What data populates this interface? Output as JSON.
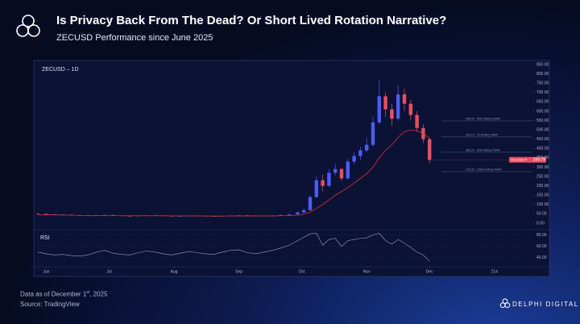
{
  "header": {
    "title": "Is Privacy Back From The Dead? Or Short Lived Rotation Narrative?",
    "subtitle": "ZECUSD Performance since June 2025"
  },
  "chart_data": {
    "type": "candlestick",
    "label": "ZECUSD – 1D",
    "symbol": "ZECUSD.P",
    "up_color": "#4a5cff",
    "down_color": "#e8505f",
    "ma_color": "#d8323c",
    "grid": false,
    "x": [
      -4,
      0,
      4,
      8,
      12,
      16,
      20,
      24,
      28,
      32,
      36,
      40,
      44,
      48,
      52,
      56,
      60,
      64,
      68,
      72,
      76,
      80,
      84,
      88,
      92,
      96,
      100,
      104,
      108,
      112,
      116,
      120,
      123,
      126,
      129,
      132,
      135,
      138,
      141,
      144,
      147,
      150,
      153,
      156,
      159,
      162,
      165,
      168,
      171,
      174,
      177,
      180,
      183
    ],
    "open": [
      52,
      50,
      48,
      46,
      45,
      43,
      41,
      40,
      42,
      44,
      41,
      39,
      38,
      40,
      42,
      41,
      39,
      37,
      38,
      40,
      39,
      38,
      37,
      39,
      41,
      42,
      40,
      38,
      39,
      41,
      44,
      48,
      58,
      70,
      140,
      230,
      200,
      270,
      290,
      240,
      330,
      360,
      390,
      420,
      540,
      680,
      610,
      560,
      690,
      640,
      580,
      510,
      450
    ],
    "high": [
      54,
      52,
      50,
      48,
      47,
      45,
      43,
      44,
      46,
      46,
      43,
      41,
      42,
      44,
      44,
      43,
      41,
      40,
      42,
      42,
      41,
      40,
      41,
      43,
      44,
      44,
      42,
      41,
      43,
      46,
      50,
      62,
      78,
      150,
      250,
      260,
      290,
      320,
      300,
      345,
      380,
      410,
      460,
      570,
      770,
      700,
      640,
      740,
      720,
      660,
      600,
      530,
      460
    ],
    "low": [
      47,
      46,
      44,
      43,
      41,
      39,
      38,
      38,
      40,
      39,
      37,
      36,
      36,
      38,
      39,
      37,
      35,
      35,
      36,
      37,
      36,
      35,
      35,
      37,
      39,
      38,
      36,
      36,
      37,
      39,
      42,
      46,
      55,
      68,
      135,
      170,
      195,
      255,
      225,
      235,
      315,
      340,
      380,
      410,
      530,
      570,
      520,
      550,
      600,
      550,
      490,
      430,
      320
    ],
    "close": [
      50,
      48,
      46,
      45,
      43,
      41,
      40,
      42,
      44,
      41,
      39,
      38,
      40,
      42,
      41,
      39,
      37,
      38,
      40,
      39,
      38,
      37,
      39,
      41,
      42,
      40,
      38,
      39,
      41,
      44,
      48,
      58,
      70,
      140,
      230,
      200,
      270,
      290,
      240,
      330,
      360,
      390,
      420,
      540,
      680,
      610,
      560,
      690,
      640,
      580,
      510,
      450,
      339.79
    ],
    "ma": {
      "values": [
        46,
        45,
        45,
        44,
        43,
        42,
        41,
        41,
        41,
        41,
        40,
        40,
        40,
        40,
        40,
        40,
        39,
        39,
        39,
        39,
        39,
        38,
        38,
        39,
        39,
        39,
        39,
        39,
        39,
        40,
        41,
        43,
        48,
        60,
        80,
        100,
        125,
        150,
        170,
        190,
        215,
        240,
        265,
        300,
        350,
        390,
        420,
        460,
        490,
        500,
        495,
        480,
        455
      ]
    },
    "xlim": [
      -4,
      232
    ],
    "xticks": [
      {
        "value": 0,
        "label": "Jun"
      },
      {
        "value": 30,
        "label": "Jul"
      },
      {
        "value": 61,
        "label": "Aug"
      },
      {
        "value": 92,
        "label": "Sep"
      },
      {
        "value": 122,
        "label": "Oct"
      },
      {
        "value": 153,
        "label": "Nov"
      },
      {
        "value": 183,
        "label": "Dec"
      },
      214
    ],
    "ylim": [
      0,
      850
    ],
    "yticks": [
      {
        "value": 0,
        "label": "0.00"
      },
      {
        "value": 50,
        "label": "50.00"
      },
      {
        "value": 100,
        "label": "100.00"
      },
      {
        "value": 150,
        "label": "150.00"
      },
      {
        "value": 200,
        "label": "200.00"
      },
      {
        "value": 250,
        "label": "250.00"
      },
      {
        "value": 300,
        "label": "300.00"
      },
      {
        "value": 350,
        "label": "350.00"
      },
      {
        "value": 400,
        "label": "400.00"
      },
      {
        "value": 450,
        "label": "450.00"
      },
      {
        "value": 500,
        "label": "500.00"
      },
      {
        "value": 550,
        "label": "550.00"
      },
      {
        "value": 600,
        "label": "600.00"
      },
      {
        "value": 650,
        "label": "650.00"
      },
      {
        "value": 700,
        "label": "700.00"
      },
      {
        "value": 750,
        "label": "750.00"
      },
      {
        "value": 800,
        "label": "800.00"
      },
      {
        "value": 850,
        "label": "850.00"
      }
    ],
    "annotations": [
      {
        "value": 548.04,
        "label": "548.04 - 50D Rolling VWAP"
      },
      {
        "value": 462.15,
        "label": "462.15 - 75 Rolling VWAP"
      },
      {
        "value": 380.2,
        "label": "380.20 - 90D Rolling VWAP"
      },
      {
        "value": 276.3,
        "label": "276.30 - 100D Rolling VWAP"
      }
    ],
    "rsi": {
      "label": "RSI",
      "color": "#9aa0b8",
      "ylim": [
        30,
        85
      ],
      "yticks": [
        {
          "value": 40,
          "label": "40.00"
        },
        {
          "value": 60,
          "label": "60.00"
        },
        {
          "value": 80,
          "label": "80.00"
        }
      ],
      "values": [
        50,
        47,
        45,
        46,
        44,
        43,
        45,
        50,
        53,
        48,
        46,
        45,
        49,
        52,
        50,
        47,
        45,
        48,
        51,
        49,
        47,
        46,
        50,
        53,
        54,
        49,
        47,
        50,
        53,
        57,
        62,
        70,
        76,
        82,
        83,
        62,
        72,
        74,
        60,
        70,
        72,
        74,
        75,
        80,
        83,
        70,
        64,
        72,
        66,
        58,
        50,
        45,
        34
      ]
    }
  },
  "footer": {
    "date_pre": "Data as of December 1",
    "date_sup": "st",
    "date_post": ", 2025",
    "source": "Source: TradingView",
    "brand": "DELPHI DIGITAL"
  }
}
